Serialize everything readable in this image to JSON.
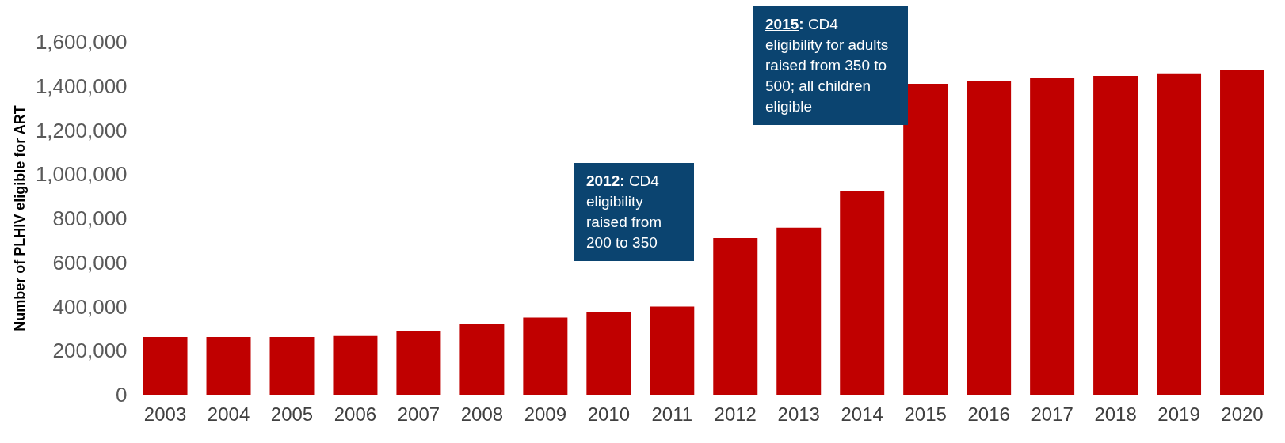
{
  "chart_data": {
    "type": "bar",
    "ylabel": "Number of PLHIV eligible for ART",
    "categories": [
      "2003",
      "2004",
      "2005",
      "2006",
      "2007",
      "2008",
      "2009",
      "2010",
      "2011",
      "2012",
      "2013",
      "2014",
      "2015",
      "2016",
      "2017",
      "2018",
      "2019",
      "2020"
    ],
    "values": [
      262000,
      262000,
      262000,
      266000,
      288000,
      320000,
      350000,
      375000,
      400000,
      710000,
      758000,
      925000,
      1410000,
      1424000,
      1435000,
      1446000,
      1457000,
      1472000
    ],
    "color": "#c00000",
    "ylim": [
      0,
      1600000
    ],
    "yticks": [
      0,
      {
        "value": 200000,
        "label": "200,000"
      },
      {
        "value": 400000,
        "label": "400,000"
      },
      {
        "value": 600000,
        "label": "600,000"
      },
      {
        "value": 800000,
        "label": "800,000"
      },
      {
        "value": 1000000,
        "label": "1,000,000"
      },
      {
        "value": 1200000,
        "label": "1,200,000"
      },
      {
        "value": 1400000,
        "label": "1,400,000"
      },
      {
        "value": 1600000,
        "label": "1,600,000"
      }
    ],
    "annotations": [
      "2012: CD4 eligibility raised from 200 to 350",
      "2015: CD4 eligibility for adults raised from 350 to 500; all children eligible"
    ],
    "grid": false
  }
}
